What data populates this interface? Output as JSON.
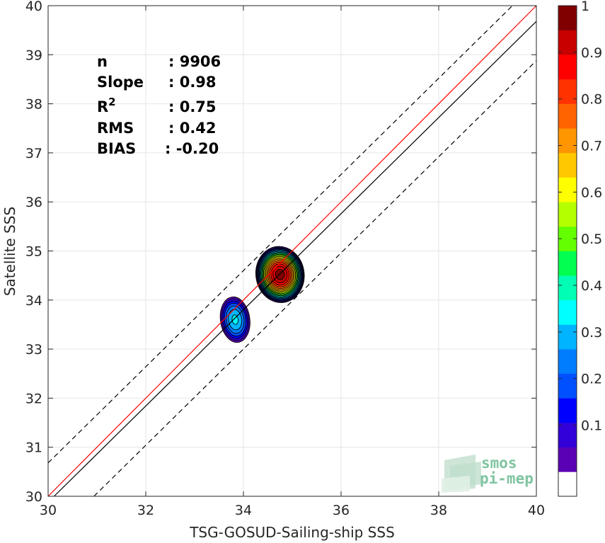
{
  "chart_data": {
    "type": "scatter",
    "subtype": "density-contour",
    "xlabel": "TSG-GOSUD-Sailing-ship SSS",
    "ylabel": "Satellite SSS",
    "xlim": [
      30,
      40
    ],
    "ylim": [
      30,
      40
    ],
    "xticks": [
      30,
      32,
      34,
      36,
      38,
      40
    ],
    "yticks": [
      30,
      31,
      32,
      33,
      34,
      35,
      36,
      37,
      38,
      39,
      40
    ],
    "grid": true,
    "stats": [
      {
        "label": "n",
        "value": ": 9906"
      },
      {
        "label": "Slope",
        "value": ": 0.98"
      },
      {
        "label": "R",
        "sup": "2",
        "value": ": 0.75"
      },
      {
        "label": "RMS",
        "value": ": 0.42"
      },
      {
        "label": "BIAS",
        "value": ": -0.20"
      }
    ],
    "lines": [
      {
        "kind": "identity",
        "color": "#ff0000",
        "style": "solid",
        "intercept": 0,
        "slope": 1
      },
      {
        "kind": "regression",
        "color": "#000000",
        "style": "solid",
        "intercept": 0.48,
        "slope": 0.98
      },
      {
        "kind": "upper-bound",
        "color": "#000000",
        "style": "dashed",
        "intercept": 1.28,
        "slope": 0.98
      },
      {
        "kind": "lower-bound",
        "color": "#000000",
        "style": "dashed",
        "intercept": -0.32,
        "slope": 0.98
      }
    ],
    "clusters": [
      {
        "cx": 34.75,
        "cy": 34.52,
        "rx": 0.5,
        "ry": 0.58,
        "peak": 1.0
      },
      {
        "cx": 33.83,
        "cy": 33.6,
        "rx": 0.31,
        "ry": 0.48,
        "peak": 0.35
      }
    ],
    "colorbar": {
      "ticks": [
        "0.1",
        "0.2",
        "0.3",
        "0.4",
        "0.5",
        "0.6",
        "0.7",
        "0.8",
        "0.9",
        "1"
      ],
      "levels": [
        "#ffffff",
        "#5a00b5",
        "#3200d8",
        "#0000ff",
        "#0050ff",
        "#007cff",
        "#00b4ff",
        "#00ffff",
        "#00ffb4",
        "#00ff50",
        "#64ff00",
        "#b4ff00",
        "#ffff00",
        "#ffc800",
        "#ff9600",
        "#ff6400",
        "#ff3200",
        "#ff0000",
        "#c80000",
        "#800000"
      ]
    },
    "watermark": {
      "line1": "smos",
      "line2": "pi-mep"
    }
  }
}
